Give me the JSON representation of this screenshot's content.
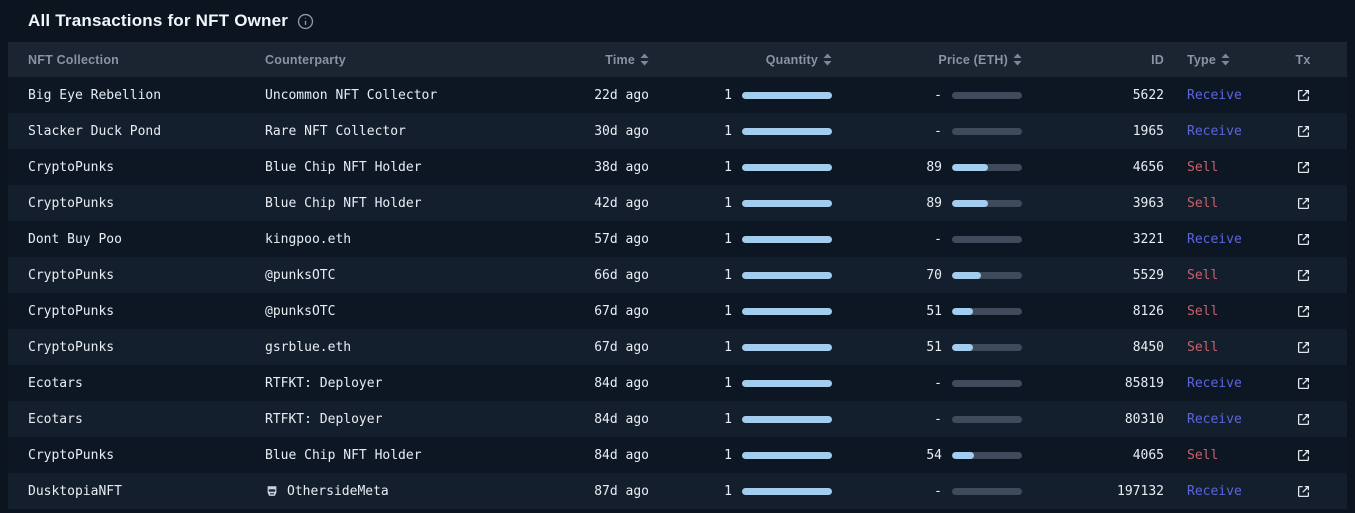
{
  "page": {
    "title": "All Transactions for NFT Owner"
  },
  "icons": {
    "title_info": "info-icon",
    "sortable_columns": "sort-arrows-icon",
    "tx_cell": "external-link-icon",
    "otherside_counterparty_badge": "helmet-icon"
  },
  "colors": {
    "page_bg": "#0b141f",
    "header_bg": "#1a2531",
    "row_odd": "#0d1724",
    "row_even": "#141f2d",
    "title_text": "#f2f6fa",
    "header_text": "#8794a4",
    "data_text": "#e8edf3",
    "quantity_bar": "#a3cdee",
    "price_bar_fill": "#a3cdee",
    "price_bar_track": "#3f4b5a",
    "receive_text": "#5a65de",
    "sell_text": "#ca6168"
  },
  "table": {
    "columns": [
      {
        "key": "collection",
        "label": "NFT Collection",
        "sortable": false,
        "align": "left"
      },
      {
        "key": "counterparty",
        "label": "Counterparty",
        "sortable": false,
        "align": "left"
      },
      {
        "key": "time",
        "label": "Time",
        "sortable": true,
        "align": "right"
      },
      {
        "key": "quantity",
        "label": "Quantity",
        "sortable": true,
        "align": "right"
      },
      {
        "key": "price",
        "label": "Price (ETH)",
        "sortable": true,
        "align": "right"
      },
      {
        "key": "id",
        "label": "ID",
        "sortable": false,
        "align": "right"
      },
      {
        "key": "type",
        "label": "Type",
        "sortable": true,
        "align": "left"
      },
      {
        "key": "tx",
        "label": "Tx",
        "sortable": false,
        "align": "center"
      }
    ],
    "rows": [
      {
        "collection": "Big Eye Rebellion",
        "counterparty": "Uncommon NFT Collector",
        "time": "22d ago",
        "quantity": 1,
        "price": null,
        "price_display": "-",
        "id": "5622",
        "type": "Receive"
      },
      {
        "collection": "Slacker Duck Pond",
        "counterparty": "Rare NFT Collector",
        "time": "30d ago",
        "quantity": 1,
        "price": null,
        "price_display": "-",
        "id": "1965",
        "type": "Receive"
      },
      {
        "collection": "CryptoPunks",
        "counterparty": "Blue Chip NFT Holder",
        "time": "38d ago",
        "quantity": 1,
        "price": 89,
        "price_display": "89",
        "id": "4656",
        "type": "Sell"
      },
      {
        "collection": "CryptoPunks",
        "counterparty": "Blue Chip NFT Holder",
        "time": "42d ago",
        "quantity": 1,
        "price": 89,
        "price_display": "89",
        "id": "3963",
        "type": "Sell"
      },
      {
        "collection": "Dont Buy Poo",
        "counterparty": "kingpoo.eth",
        "time": "57d ago",
        "quantity": 1,
        "price": null,
        "price_display": "-",
        "id": "3221",
        "type": "Receive"
      },
      {
        "collection": "CryptoPunks",
        "counterparty": "@punksOTC",
        "time": "66d ago",
        "quantity": 1,
        "price": 70,
        "price_display": "70",
        "id": "5529",
        "type": "Sell"
      },
      {
        "collection": "CryptoPunks",
        "counterparty": "@punksOTC",
        "time": "67d ago",
        "quantity": 1,
        "price": 51,
        "price_display": "51",
        "id": "8126",
        "type": "Sell"
      },
      {
        "collection": "CryptoPunks",
        "counterparty": "gsrblue.eth",
        "time": "67d ago",
        "quantity": 1,
        "price": 51,
        "price_display": "51",
        "id": "8450",
        "type": "Sell"
      },
      {
        "collection": "Ecotars",
        "counterparty": "RTFKT: Deployer",
        "time": "84d ago",
        "quantity": 1,
        "price": null,
        "price_display": "-",
        "id": "85819",
        "type": "Receive"
      },
      {
        "collection": "Ecotars",
        "counterparty": "RTFKT: Deployer",
        "time": "84d ago",
        "quantity": 1,
        "price": null,
        "price_display": "-",
        "id": "80310",
        "type": "Receive"
      },
      {
        "collection": "CryptoPunks",
        "counterparty": "Blue Chip NFT Holder",
        "time": "84d ago",
        "quantity": 1,
        "price": 54,
        "price_display": "54",
        "id": "4065",
        "type": "Sell"
      },
      {
        "collection": "DusktopiaNFT",
        "counterparty": "OthersideMeta",
        "counterparty_icon": "helmet-icon",
        "time": "87d ago",
        "quantity": 1,
        "price": null,
        "price_display": "-",
        "id": "197132",
        "type": "Receive"
      }
    ]
  }
}
